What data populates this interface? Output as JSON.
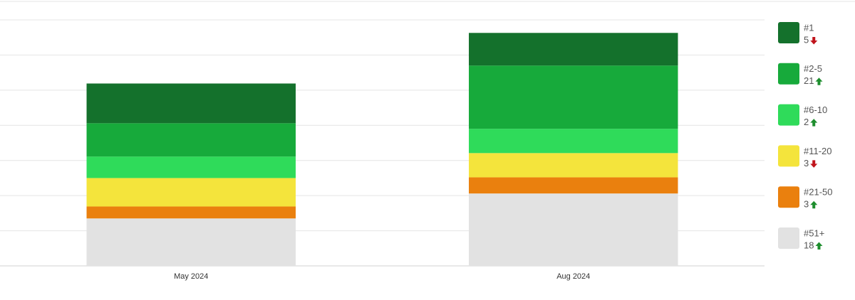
{
  "chart_data": {
    "type": "bar",
    "stacked": true,
    "categories": [
      "May 2024",
      "Aug 2024"
    ],
    "ylim": [
      0,
      70
    ],
    "yticks": [
      0,
      10,
      20,
      30,
      40,
      50,
      60,
      70
    ],
    "grid": true,
    "ytick_labels": false,
    "legend": "right",
    "series": [
      {
        "name": "#51+",
        "color": "#e2e2e2",
        "values": [
          13.5,
          20.6
        ],
        "count": 18,
        "trend": "up"
      },
      {
        "name": "#21-50",
        "color": "#ea800e",
        "values": [
          3.4,
          4.6
        ],
        "count": 3,
        "trend": "up"
      },
      {
        "name": "#11-20",
        "color": "#f4e43c",
        "values": [
          8.1,
          6.9
        ],
        "count": 3,
        "trend": "down"
      },
      {
        "name": "#6-10",
        "color": "#2fdb5a",
        "values": [
          6.1,
          6.9
        ],
        "count": 2,
        "trend": "up"
      },
      {
        "name": "#2-5",
        "color": "#17aa3b",
        "values": [
          9.5,
          18
        ],
        "count": 21,
        "trend": "up"
      },
      {
        "name": "#1",
        "color": "#14712c",
        "values": [
          11.3,
          9.3
        ],
        "count": 5,
        "trend": "down"
      }
    ]
  }
}
